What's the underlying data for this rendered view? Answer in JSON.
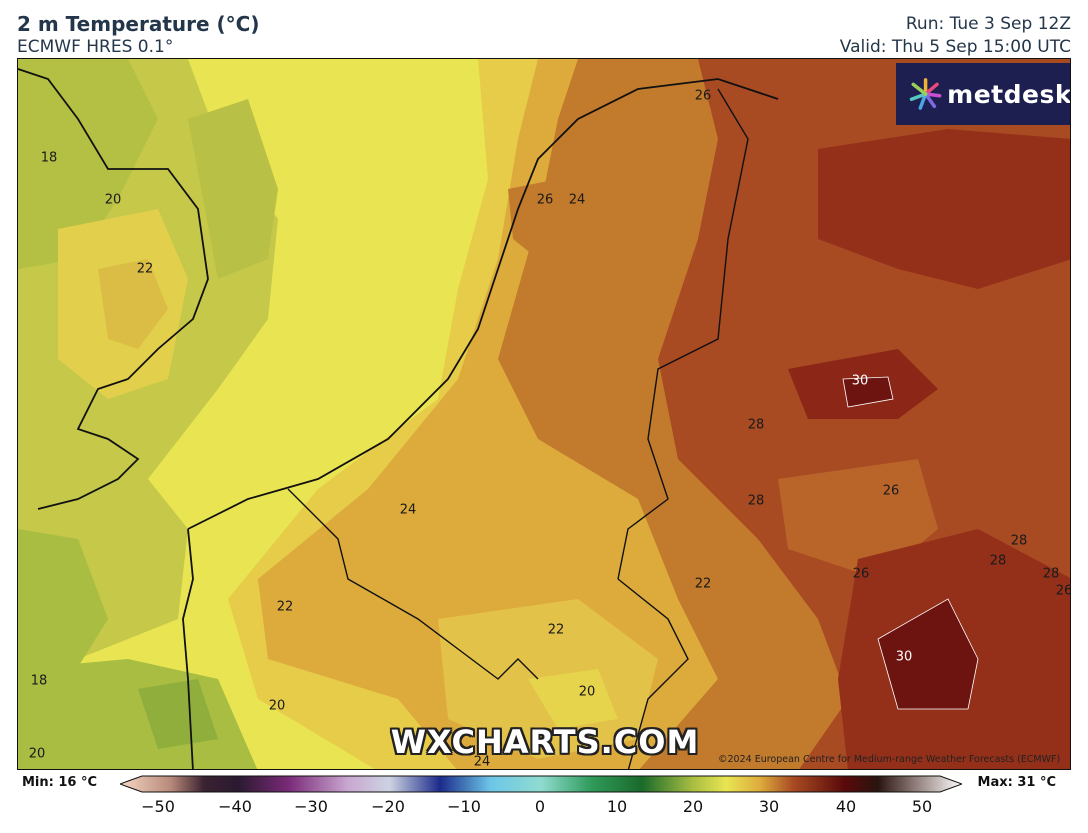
{
  "header": {
    "title": "2 m Temperature (°C)",
    "subtitle": "ECMWF HRES 0.1°",
    "run": "Run: Tue 3 Sep 12Z",
    "valid": "Valid: Thu 5 Sep 15:00 UTC"
  },
  "logo": {
    "text": "metdesk",
    "icon": "metdesk-flower-icon"
  },
  "watermark": "WXCHARTS.COM",
  "copyright": "©2024 European Centre for Medium-range Weather Forecasts (ECMWF)",
  "contour_labels": [
    "18",
    "20",
    "22",
    "26",
    "26",
    "24",
    "22",
    "18",
    "20",
    "20",
    "24",
    "22",
    "22",
    "20",
    "24",
    "30",
    "28",
    "28",
    "26",
    "26",
    "28",
    "28",
    "28",
    "26",
    "30"
  ],
  "colorbar": {
    "min_label": "Min: 16 °C",
    "max_label": "Max: 31 °C",
    "ticks": [
      "−50",
      "−40",
      "−30",
      "−20",
      "−10",
      "0",
      "10",
      "20",
      "30",
      "40",
      "50"
    ],
    "range": [
      -50,
      50
    ]
  },
  "colors": {
    "t16": "#8fae3c",
    "t18": "#a8bd42",
    "t20": "#c6c84a",
    "t22": "#e6d44c",
    "t24": "#ddac3c",
    "t26": "#c27a2c",
    "t28": "#a84a22",
    "t30": "#8c2616",
    "t31": "#6e1410",
    "sea_cool": "#e9e552",
    "logo_bg": "#1c1f4f"
  }
}
